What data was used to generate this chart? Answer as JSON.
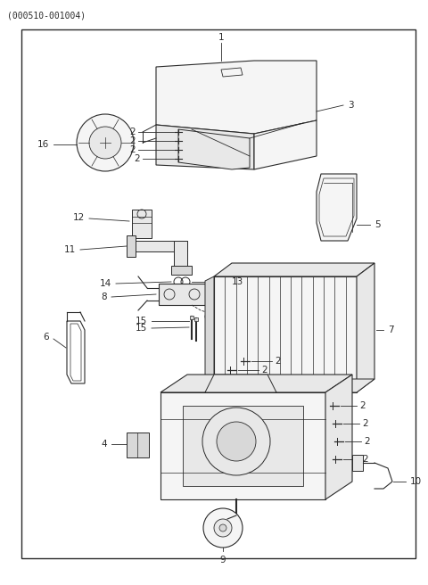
{
  "title": "(000510-001004)",
  "bg_color": "#ffffff",
  "line_color": "#2a2a2a",
  "diagram_border": [
    0.05,
    0.05,
    0.97,
    0.955
  ]
}
